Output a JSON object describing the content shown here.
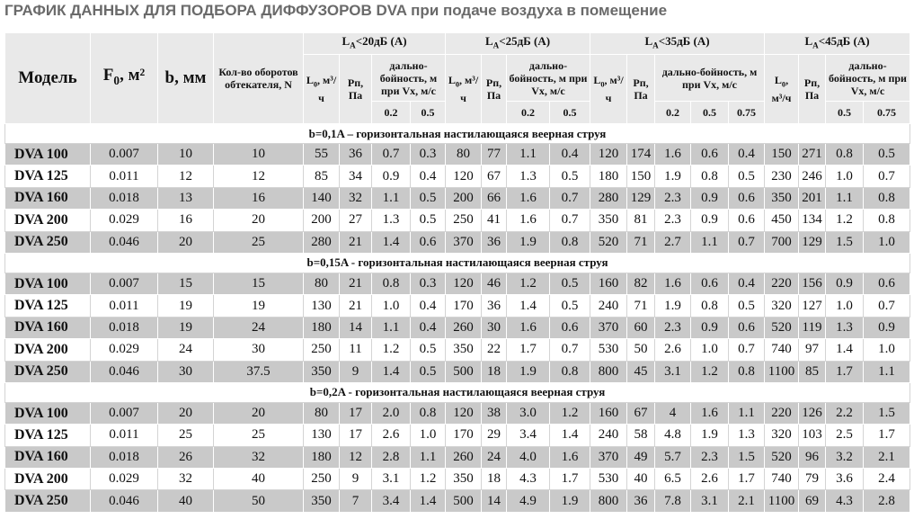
{
  "title": "ГРАФИК ДАННЫХ ДЛЯ ПОДБОРА ДИФФУЗОРОВ DVA при подаче воздуха в помещение",
  "table": {
    "fixed_columns": [
      "Модель",
      [
        {
          "text": "F"
        },
        {
          "sub": "0"
        },
        {
          "text": ", м²"
        }
      ],
      "b, мм",
      "Кол-во оборотов обтекателя, N"
    ],
    "groups": [
      {
        "label": [
          {
            "text": "L"
          },
          {
            "sub": "A"
          },
          {
            "text": "<20дБ (A)"
          }
        ],
        "flow": [
          {
            "text": "L"
          },
          {
            "sub": "0"
          },
          {
            "text": ", м³/ч"
          }
        ],
        "pressure": "Рп, Па",
        "range": "дально-бойность, м при Vx, м/с",
        "speeds": [
          "0.2",
          "0.5"
        ]
      },
      {
        "label": [
          {
            "text": "L"
          },
          {
            "sub": "A"
          },
          {
            "text": "<25дБ (A)"
          }
        ],
        "flow": [
          {
            "text": "L"
          },
          {
            "sub": "0"
          },
          {
            "text": ", м³/ч"
          }
        ],
        "pressure": "Рп, Па",
        "range": "дально-бойность, м при Vx, м/с",
        "speeds": [
          "0.2",
          "0.5"
        ]
      },
      {
        "label": [
          {
            "text": "L"
          },
          {
            "sub": "A"
          },
          {
            "text": "<35дБ (A)"
          }
        ],
        "flow": [
          {
            "text": "L"
          },
          {
            "sub": "0"
          },
          {
            "text": ", м³/ч"
          }
        ],
        "pressure": "Рп, Па",
        "range": "дально-бойность, м при Vx, м/с",
        "speeds": [
          "0.2",
          "0.5",
          "0.75"
        ]
      },
      {
        "label": [
          {
            "text": "L"
          },
          {
            "sub": "A"
          },
          {
            "text": "<45дБ (A)"
          }
        ],
        "flow": [
          {
            "text": "L"
          },
          {
            "sub": "0"
          },
          {
            "text": ", м³/ч"
          }
        ],
        "pressure": "Рп, Па",
        "range": "дально-бойность, м при Vx, м/с",
        "speeds": [
          "0.5",
          "0.75"
        ]
      }
    ],
    "sections": [
      {
        "heading": "b=0,1A  – горизонтальная настилающаяся веерная струя",
        "rows": [
          [
            "DVA 100",
            "0.007",
            "10",
            "10",
            "55",
            "36",
            "0.7",
            "0.3",
            "80",
            "77",
            "1.1",
            "0.4",
            "120",
            "174",
            "1.6",
            "0.6",
            "0.4",
            "150",
            "271",
            "0.8",
            "0.5"
          ],
          [
            "DVA 125",
            "0.011",
            "12",
            "12",
            "85",
            "34",
            "0.9",
            "0.4",
            "120",
            "67",
            "1.3",
            "0.5",
            "180",
            "150",
            "1.9",
            "0.8",
            "0.5",
            "230",
            "246",
            "1.0",
            "0.7"
          ],
          [
            "DVA 160",
            "0.018",
            "13",
            "16",
            "140",
            "32",
            "1.1",
            "0.5",
            "200",
            "66",
            "1.6",
            "0.7",
            "280",
            "129",
            "2.3",
            "0.9",
            "0.6",
            "350",
            "201",
            "1.1",
            "0.8"
          ],
          [
            "DVA 200",
            "0.029",
            "16",
            "20",
            "200",
            "27",
            "1.3",
            "0.5",
            "250",
            "41",
            "1.6",
            "0.7",
            "350",
            "81",
            "2.3",
            "0.9",
            "0.6",
            "450",
            "134",
            "1.2",
            "0.8"
          ],
          [
            "DVA 250",
            "0.046",
            "20",
            "25",
            "280",
            "21",
            "1.4",
            "0.6",
            "370",
            "36",
            "1.9",
            "0.8",
            "520",
            "71",
            "2.7",
            "1.1",
            "0.7",
            "700",
            "129",
            "1.5",
            "1.0"
          ]
        ]
      },
      {
        "heading": "b=0,15A  - горизонтальная настилающаяся веерная струя",
        "rows": [
          [
            "DVA 100",
            "0.007",
            "15",
            "15",
            "80",
            "21",
            "0.8",
            "0.3",
            "120",
            "46",
            "1.2",
            "0.5",
            "160",
            "82",
            "1.6",
            "0.6",
            "0.4",
            "220",
            "156",
            "0.9",
            "0.6"
          ],
          [
            "DVA 125",
            "0.011",
            "19",
            "19",
            "130",
            "21",
            "1.0",
            "0.4",
            "170",
            "36",
            "1.4",
            "0.5",
            "240",
            "71",
            "1.9",
            "0.8",
            "0.5",
            "320",
            "127",
            "1.0",
            "0.7"
          ],
          [
            "DVA 160",
            "0.018",
            "19",
            "24",
            "180",
            "14",
            "1.1",
            "0.4",
            "260",
            "30",
            "1.6",
            "0.6",
            "370",
            "60",
            "2.3",
            "0.9",
            "0.6",
            "520",
            "119",
            "1.3",
            "0.9"
          ],
          [
            "DVA 200",
            "0.029",
            "24",
            "30",
            "250",
            "11",
            "1.2",
            "0.5",
            "350",
            "22",
            "1.7",
            "0.7",
            "530",
            "50",
            "2.6",
            "1.0",
            "0.7",
            "740",
            "97",
            "1.4",
            "1.0"
          ],
          [
            "DVA 250",
            "0.046",
            "30",
            "37.5",
            "350",
            "9",
            "1.4",
            "0.5",
            "500",
            "18",
            "1.9",
            "0.8",
            "800",
            "45",
            "3.1",
            "1.2",
            "0.8",
            "1100",
            "85",
            "1.7",
            "1.1"
          ]
        ]
      },
      {
        "heading": "b=0,2A - горизонтальная настилающаяся веерная струя",
        "rows": [
          [
            "DVA 100",
            "0.007",
            "20",
            "20",
            "80",
            "17",
            "2.0",
            "0.8",
            "120",
            "38",
            "3.0",
            "1.2",
            "160",
            "67",
            "4",
            "1.6",
            "1.1",
            "220",
            "126",
            "2.2",
            "1.5"
          ],
          [
            "DVA 125",
            "0.011",
            "25",
            "25",
            "130",
            "17",
            "2.6",
            "1.0",
            "170",
            "29",
            "3.4",
            "1.4",
            "240",
            "58",
            "4.8",
            "1.9",
            "1.3",
            "320",
            "103",
            "2.5",
            "1.7"
          ],
          [
            "DVA 160",
            "0.018",
            "26",
            "32",
            "180",
            "12",
            "2.8",
            "1.1",
            "260",
            "24",
            "4.0",
            "1.6",
            "370",
            "49",
            "5.7",
            "2.3",
            "1.5",
            "520",
            "96",
            "3.2",
            "2.1"
          ],
          [
            "DVA 200",
            "0.029",
            "32",
            "40",
            "250",
            "9",
            "3.1",
            "1.2",
            "350",
            "18",
            "4.3",
            "1.7",
            "530",
            "40",
            "6.5",
            "2.6",
            "1.7",
            "740",
            "79",
            "3.6",
            "2.4"
          ],
          [
            "DVA 250",
            "0.046",
            "40",
            "50",
            "350",
            "7",
            "3.4",
            "1.4",
            "500",
            "14",
            "4.9",
            "1.9",
            "800",
            "36",
            "7.8",
            "3.1",
            "2.1",
            "1100",
            "69",
            "4.3",
            "2.8"
          ]
        ]
      }
    ]
  }
}
